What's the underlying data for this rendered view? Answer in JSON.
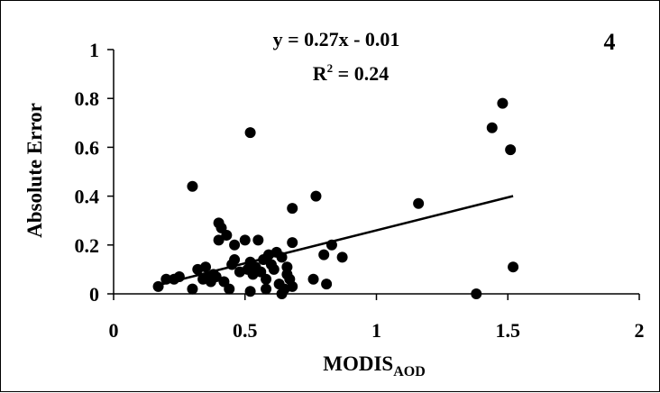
{
  "chart_data": {
    "type": "scatter",
    "panel_label": "4",
    "equation": "y = 0.27x - 0.01",
    "r2_prefix": "R",
    "r2_exp": "2",
    "r2_value": " = 0.24",
    "xlabel_main": "MODIS",
    "xlabel_sub": "AOD",
    "ylabel": "Absolute Error",
    "xlim": [
      0,
      2
    ],
    "ylim": [
      0,
      1
    ],
    "xticks": [
      0,
      0.5,
      1,
      1.5,
      2
    ],
    "xtick_labels": [
      "0",
      "0.5",
      "1",
      "1.5",
      "2"
    ],
    "yticks": [
      0,
      0.2,
      0.4,
      0.6,
      0.8,
      1
    ],
    "ytick_labels": [
      "0",
      "0.2",
      "0.4",
      "0.6",
      "0.8",
      "1"
    ],
    "grid": false,
    "legend": "none",
    "marker_color": "#000000",
    "trendline": {
      "slope": 0.27,
      "intercept": -0.01,
      "x_range": [
        0.17,
        1.52
      ]
    },
    "points": [
      [
        0.17,
        0.03
      ],
      [
        0.2,
        0.06
      ],
      [
        0.23,
        0.06
      ],
      [
        0.25,
        0.07
      ],
      [
        0.3,
        0.02
      ],
      [
        0.3,
        0.44
      ],
      [
        0.32,
        0.1
      ],
      [
        0.34,
        0.06
      ],
      [
        0.35,
        0.11
      ],
      [
        0.36,
        0.07
      ],
      [
        0.37,
        0.05
      ],
      [
        0.38,
        0.08
      ],
      [
        0.39,
        0.07
      ],
      [
        0.4,
        0.22
      ],
      [
        0.4,
        0.29
      ],
      [
        0.41,
        0.27
      ],
      [
        0.42,
        0.05
      ],
      [
        0.43,
        0.24
      ],
      [
        0.44,
        0.02
      ],
      [
        0.45,
        0.12
      ],
      [
        0.46,
        0.2
      ],
      [
        0.46,
        0.14
      ],
      [
        0.48,
        0.09
      ],
      [
        0.5,
        0.22
      ],
      [
        0.51,
        0.1
      ],
      [
        0.52,
        0.66
      ],
      [
        0.52,
        0.01
      ],
      [
        0.52,
        0.13
      ],
      [
        0.53,
        0.08
      ],
      [
        0.54,
        0.11
      ],
      [
        0.55,
        0.22
      ],
      [
        0.56,
        0.09
      ],
      [
        0.57,
        0.14
      ],
      [
        0.58,
        0.06
      ],
      [
        0.58,
        0.02
      ],
      [
        0.59,
        0.16
      ],
      [
        0.6,
        0.12
      ],
      [
        0.61,
        0.1
      ],
      [
        0.62,
        0.17
      ],
      [
        0.63,
        0.04
      ],
      [
        0.64,
        0.15
      ],
      [
        0.64,
        0.0
      ],
      [
        0.65,
        0.02
      ],
      [
        0.66,
        0.11
      ],
      [
        0.66,
        0.08
      ],
      [
        0.67,
        0.06
      ],
      [
        0.68,
        0.35
      ],
      [
        0.68,
        0.21
      ],
      [
        0.68,
        0.03
      ],
      [
        0.76,
        0.06
      ],
      [
        0.77,
        0.4
      ],
      [
        0.8,
        0.16
      ],
      [
        0.81,
        0.04
      ],
      [
        0.83,
        0.2
      ],
      [
        0.87,
        0.15
      ],
      [
        1.16,
        0.37
      ],
      [
        1.38,
        0.0
      ],
      [
        1.44,
        0.68
      ],
      [
        1.48,
        0.78
      ],
      [
        1.51,
        0.59
      ],
      [
        1.52,
        0.11
      ]
    ]
  }
}
